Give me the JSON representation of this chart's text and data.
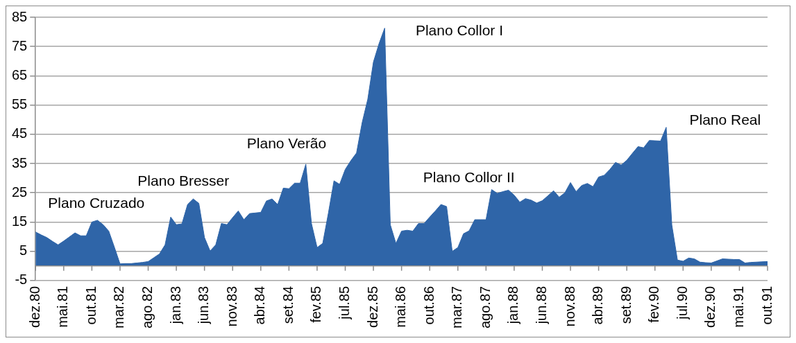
{
  "chart_data": {
    "type": "area",
    "categories": [
      "dez.80",
      null,
      null,
      null,
      null,
      "mai.81",
      null,
      null,
      null,
      null,
      "out.81",
      null,
      null,
      null,
      null,
      "mar.82",
      null,
      null,
      null,
      null,
      "ago.82",
      null,
      null,
      null,
      null,
      "jan.83",
      null,
      null,
      null,
      null,
      "jun.83",
      null,
      null,
      null,
      null,
      "nov.83",
      null,
      null,
      null,
      null,
      "abr.84",
      null,
      null,
      null,
      null,
      "set.84",
      null,
      null,
      null,
      null,
      "fev.85",
      null,
      null,
      null,
      null,
      "jul.85",
      null,
      null,
      null,
      null,
      "dez.85",
      null,
      null,
      null,
      null,
      "mai.86",
      null,
      null,
      null,
      null,
      "out.86",
      null,
      null,
      null,
      null,
      "mar.87",
      null,
      null,
      null,
      null,
      "ago.87",
      null,
      null,
      null,
      null,
      "jan.88",
      null,
      null,
      null,
      null,
      "jun.88",
      null,
      null,
      null,
      null,
      "nov.88",
      null,
      null,
      null,
      null,
      "abr.89",
      null,
      null,
      null,
      null,
      "set.89",
      null,
      null,
      null,
      null,
      "fev.90",
      null,
      null,
      null,
      null,
      "jul.90",
      null,
      null,
      null,
      null,
      "dez.90",
      null,
      null,
      null,
      null,
      "mai.91",
      null,
      null,
      null,
      null,
      "out.91"
    ],
    "values": [
      11.6,
      10.6,
      9.7,
      8.4,
      7.2,
      8.5,
      9.9,
      11.3,
      10.3,
      10.3,
      15,
      15.6,
      14.1,
      11.9,
      6.4,
      0.7,
      0.8,
      0.8,
      1,
      1.2,
      1.5,
      2.8,
      4.1,
      7.2,
      16.7,
      14.1,
      14.4,
      21,
      22.9,
      21.4,
      9.7,
      5.1,
      7.2,
      14.5,
      14.1,
      16.5,
      18.8,
      15.8,
      17.9,
      18.1,
      18.3,
      22.2,
      22.9,
      21,
      26.6,
      26.4,
      28.3,
      28.3,
      34.8,
      14.5,
      6.3,
      7.7,
      18,
      29.1,
      27.9,
      33,
      36,
      38.6,
      49,
      57,
      69.7,
      76,
      81.3,
      14.1,
      7.7,
      11.9,
      12.2,
      11.9,
      14.5,
      14.5,
      16.7,
      18.8,
      21,
      20.3,
      5,
      6.3,
      11,
      12,
      15.8,
      15.8,
      15.8,
      26.1,
      24.8,
      25.4,
      25.9,
      24.2,
      21.8,
      23,
      22.5,
      21.5,
      22.3,
      24,
      25.7,
      23.5,
      25,
      28.5,
      25.4,
      27.5,
      28.2,
      27.1,
      30.4,
      31,
      33,
      35.4,
      34.5,
      36.1,
      38.5,
      40.8,
      40.4,
      42.9,
      42.8,
      42.7,
      47.4,
      14,
      2,
      1.6,
      2.7,
      2.4,
      1.3,
      1.1,
      1,
      1.7,
      2.4,
      2.3,
      2.2,
      2.2,
      1,
      1.2,
      1.3,
      1.4,
      1.5
    ],
    "color": "#2f65a8",
    "ylim": [
      -5,
      85
    ],
    "yticks": [
      -5,
      5,
      15,
      25,
      35,
      45,
      55,
      65,
      75,
      85
    ],
    "grid": "y",
    "annotations": [
      "Plano Cruzado",
      "Plano Bresser",
      "Plano Verão",
      "Plano Collor I",
      "Plano Collor II",
      "Plano Real"
    ]
  }
}
